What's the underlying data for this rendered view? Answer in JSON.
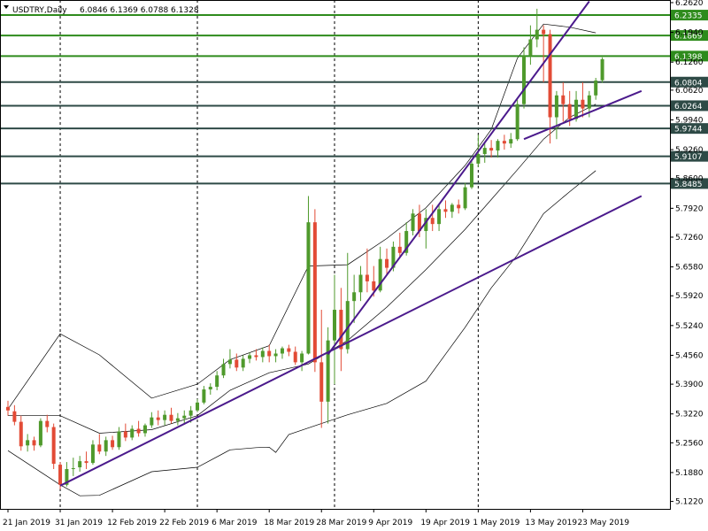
{
  "header": {
    "symbol": "USDTRY,Daily",
    "ohlc": "6.0846 6.1369 6.0788 6.1328"
  },
  "colors": {
    "background": "#ffffff",
    "bull": "#4f9a2c",
    "bear": "#e24b36",
    "bollinger": "#000000",
    "trendline": "#4b1a8c",
    "level_dark": "#2e4a46",
    "level_green": "#2e8b1c",
    "grid_vline": "#000000"
  },
  "chart_data": {
    "type": "candlestick",
    "title": "USDTRY,Daily",
    "ylim": [
      5.105,
      6.268
    ],
    "y_ticks": [
      "6.2620",
      "6.1940",
      "6.1260",
      "6.0620",
      "5.9940",
      "5.9260",
      "5.8600",
      "5.7920",
      "5.7260",
      "5.6580",
      "5.5920",
      "5.5240",
      "5.4560",
      "5.3900",
      "5.3220",
      "5.2560",
      "5.1880",
      "5.1220"
    ],
    "x_labels": [
      {
        "label": "21 Jan 2019",
        "i": 0
      },
      {
        "label": "31 Jan 2019",
        "i": 8
      },
      {
        "label": "12 Feb 2019",
        "i": 16
      },
      {
        "label": "22 Feb 2019",
        "i": 24
      },
      {
        "label": "6 Mar 2019",
        "i": 32
      },
      {
        "label": "18 Mar 2019",
        "i": 40
      },
      {
        "label": "28 Mar 2019",
        "i": 48
      },
      {
        "label": "9 Apr 2019",
        "i": 56
      },
      {
        "label": "19 Apr 2019",
        "i": 64
      },
      {
        "label": "1 May 2019",
        "i": 72
      },
      {
        "label": "13 May 2019",
        "i": 80
      },
      {
        "label": "23 May 2019",
        "i": 88
      }
    ],
    "period_separators_i": [
      8,
      29,
      50,
      72
    ],
    "ohlc": [
      [
        5.338,
        5.352,
        5.318,
        5.33
      ],
      [
        5.328,
        5.342,
        5.296,
        5.304
      ],
      [
        5.304,
        5.318,
        5.238,
        5.248
      ],
      [
        5.25,
        5.276,
        5.236,
        5.262
      ],
      [
        5.262,
        5.27,
        5.238,
        5.25
      ],
      [
        5.25,
        5.312,
        5.246,
        5.306
      ],
      [
        5.306,
        5.32,
        5.28,
        5.292
      ],
      [
        5.292,
        5.3,
        5.196,
        5.208
      ],
      [
        5.206,
        5.212,
        5.15,
        5.16
      ],
      [
        5.16,
        5.212,
        5.156,
        5.196
      ],
      [
        5.196,
        5.222,
        5.18,
        5.198
      ],
      [
        5.2,
        5.226,
        5.19,
        5.214
      ],
      [
        5.214,
        5.236,
        5.196,
        5.21
      ],
      [
        5.21,
        5.262,
        5.206,
        5.252
      ],
      [
        5.252,
        5.276,
        5.23,
        5.236
      ],
      [
        5.236,
        5.27,
        5.226,
        5.262
      ],
      [
        5.262,
        5.272,
        5.24,
        5.246
      ],
      [
        5.246,
        5.292,
        5.24,
        5.282
      ],
      [
        5.282,
        5.3,
        5.26,
        5.268
      ],
      [
        5.268,
        5.296,
        5.262,
        5.288
      ],
      [
        5.288,
        5.306,
        5.27,
        5.278
      ],
      [
        5.278,
        5.3,
        5.27,
        5.296
      ],
      [
        5.296,
        5.326,
        5.29,
        5.314
      ],
      [
        5.314,
        5.33,
        5.296,
        5.308
      ],
      [
        5.308,
        5.33,
        5.296,
        5.32
      ],
      [
        5.32,
        5.336,
        5.3,
        5.306
      ],
      [
        5.306,
        5.324,
        5.296,
        5.312
      ],
      [
        5.312,
        5.33,
        5.3,
        5.318
      ],
      [
        5.318,
        5.34,
        5.302,
        5.33
      ],
      [
        5.33,
        5.356,
        5.326,
        5.348
      ],
      [
        5.348,
        5.386,
        5.344,
        5.378
      ],
      [
        5.378,
        5.392,
        5.366,
        5.384
      ],
      [
        5.384,
        5.42,
        5.376,
        5.41
      ],
      [
        5.41,
        5.448,
        5.404,
        5.436
      ],
      [
        5.436,
        5.47,
        5.426,
        5.446
      ],
      [
        5.446,
        5.46,
        5.42,
        5.428
      ],
      [
        5.428,
        5.456,
        5.42,
        5.448
      ],
      [
        5.448,
        5.462,
        5.438,
        5.456
      ],
      [
        5.456,
        5.47,
        5.444,
        5.452
      ],
      [
        5.452,
        5.474,
        5.44,
        5.466
      ],
      [
        5.466,
        5.48,
        5.44,
        5.454
      ],
      [
        5.454,
        5.47,
        5.44,
        5.46
      ],
      [
        5.46,
        5.476,
        5.448,
        5.472
      ],
      [
        5.472,
        5.48,
        5.454,
        5.464
      ],
      [
        5.464,
        5.476,
        5.434,
        5.44
      ],
      [
        5.44,
        5.466,
        5.42,
        5.46
      ],
      [
        5.46,
        5.82,
        5.458,
        5.76
      ],
      [
        5.76,
        5.79,
        5.418,
        5.44
      ],
      [
        5.44,
        5.56,
        5.29,
        5.35
      ],
      [
        5.35,
        5.52,
        5.3,
        5.49
      ],
      [
        5.49,
        5.64,
        5.39,
        5.56
      ],
      [
        5.56,
        5.61,
        5.42,
        5.47
      ],
      [
        5.47,
        5.69,
        5.46,
        5.58
      ],
      [
        5.58,
        5.64,
        5.53,
        5.6
      ],
      [
        5.6,
        5.66,
        5.58,
        5.64
      ],
      [
        5.64,
        5.7,
        5.6,
        5.625
      ],
      [
        5.625,
        5.66,
        5.59,
        5.604
      ],
      [
        5.604,
        5.704,
        5.6,
        5.676
      ],
      [
        5.676,
        5.7,
        5.64,
        5.656
      ],
      [
        5.656,
        5.716,
        5.648,
        5.704
      ],
      [
        5.704,
        5.736,
        5.68,
        5.69
      ],
      [
        5.69,
        5.76,
        5.684,
        5.74
      ],
      [
        5.74,
        5.79,
        5.73,
        5.78
      ],
      [
        5.78,
        5.8,
        5.726,
        5.74
      ],
      [
        5.74,
        5.79,
        5.7,
        5.77
      ],
      [
        5.77,
        5.8,
        5.74,
        5.756
      ],
      [
        5.756,
        5.8,
        5.74,
        5.79
      ],
      [
        5.79,
        5.81,
        5.77,
        5.784
      ],
      [
        5.784,
        5.804,
        5.77,
        5.8
      ],
      [
        5.8,
        5.812,
        5.78,
        5.792
      ],
      [
        5.792,
        5.85,
        5.788,
        5.84
      ],
      [
        5.84,
        5.9,
        5.836,
        5.894
      ],
      [
        5.894,
        5.96,
        5.886,
        5.916
      ],
      [
        5.916,
        5.94,
        5.896,
        5.93
      ],
      [
        5.93,
        5.948,
        5.908,
        5.924
      ],
      [
        5.924,
        5.95,
        5.908,
        5.946
      ],
      [
        5.946,
        5.96,
        5.926,
        5.94
      ],
      [
        5.94,
        5.964,
        5.93,
        5.95
      ],
      [
        5.95,
        6.04,
        5.946,
        6.03
      ],
      [
        6.03,
        6.16,
        6.02,
        6.14
      ],
      [
        6.14,
        6.21,
        6.12,
        6.178
      ],
      [
        6.178,
        6.248,
        6.16,
        6.2
      ],
      [
        6.2,
        6.21,
        6.08,
        6.19
      ],
      [
        6.19,
        6.2,
        5.94,
        6.0
      ],
      [
        6.0,
        6.06,
        5.95,
        6.05
      ],
      [
        6.05,
        6.08,
        5.99,
        6.03
      ],
      [
        6.03,
        6.06,
        5.98,
        5.996
      ],
      [
        5.996,
        6.06,
        5.99,
        6.04
      ],
      [
        6.04,
        6.08,
        6.0,
        6.02
      ],
      [
        6.02,
        6.06,
        6.0,
        6.05
      ],
      [
        6.05,
        6.09,
        6.04,
        6.084
      ],
      [
        6.0846,
        6.1369,
        6.0788,
        6.1328
      ]
    ],
    "bollinger": {
      "upper": [
        [
          0,
          5.333
        ],
        [
          8,
          5.505
        ],
        [
          14,
          5.457
        ],
        [
          22,
          5.358
        ],
        [
          29,
          5.39
        ],
        [
          34,
          5.446
        ],
        [
          40,
          5.478
        ],
        [
          46,
          5.66
        ],
        [
          52,
          5.663
        ],
        [
          58,
          5.723
        ],
        [
          64,
          5.793
        ],
        [
          70,
          5.89
        ],
        [
          74,
          5.972
        ],
        [
          78,
          6.135
        ],
        [
          82,
          6.213
        ],
        [
          86,
          6.206
        ],
        [
          90,
          6.193
        ]
      ],
      "middle": [
        [
          0,
          5.318
        ],
        [
          8,
          5.318
        ],
        [
          14,
          5.278
        ],
        [
          22,
          5.286
        ],
        [
          29,
          5.318
        ],
        [
          34,
          5.376
        ],
        [
          40,
          5.416
        ],
        [
          46,
          5.436
        ],
        [
          52,
          5.49
        ],
        [
          58,
          5.566
        ],
        [
          64,
          5.652
        ],
        [
          70,
          5.744
        ],
        [
          74,
          5.812
        ],
        [
          78,
          5.88
        ],
        [
          82,
          5.95
        ],
        [
          86,
          6.0
        ],
        [
          90,
          6.03
        ]
      ],
      "lower": [
        [
          0,
          5.238
        ],
        [
          8,
          5.16
        ],
        [
          11,
          5.135
        ],
        [
          14,
          5.136
        ],
        [
          22,
          5.19
        ],
        [
          29,
          5.2
        ],
        [
          34,
          5.24
        ],
        [
          38,
          5.245
        ],
        [
          40,
          5.246
        ],
        [
          41,
          5.234
        ],
        [
          43,
          5.275
        ],
        [
          48,
          5.3
        ],
        [
          52,
          5.32
        ],
        [
          58,
          5.346
        ],
        [
          64,
          5.397
        ],
        [
          70,
          5.52
        ],
        [
          74,
          5.61
        ],
        [
          78,
          5.685
        ],
        [
          82,
          5.78
        ],
        [
          86,
          5.83
        ],
        [
          90,
          5.878
        ]
      ]
    },
    "trendlines": [
      {
        "from": [
          8,
          5.158
        ],
        "to": [
          97,
          5.82
        ]
      },
      {
        "from": [
          49,
          5.458
        ],
        "to": [
          89,
          6.265
        ]
      },
      {
        "from": [
          79,
          5.95
        ],
        "to": [
          97,
          6.06
        ]
      }
    ],
    "levels": [
      {
        "value": 6.2335,
        "label": "6.2335",
        "style": "green"
      },
      {
        "value": 6.1869,
        "label": "6.1869",
        "style": "green"
      },
      {
        "value": 6.1398,
        "label": "6.1398",
        "style": "green"
      },
      {
        "value": 6.0804,
        "label": "6.0804",
        "style": "dark"
      },
      {
        "value": 6.0264,
        "label": "6.0264",
        "style": "dark"
      },
      {
        "value": 5.9744,
        "label": "5.9744",
        "style": "dark"
      },
      {
        "value": 5.9107,
        "label": "5.9107",
        "style": "dark"
      },
      {
        "value": 5.8485,
        "label": "5.8485",
        "style": "dark"
      }
    ]
  }
}
